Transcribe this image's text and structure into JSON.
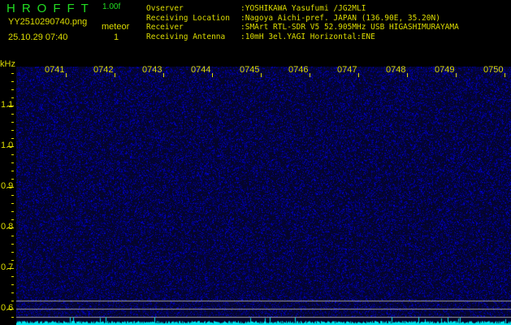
{
  "header": {
    "logo": "HROFFT",
    "version": "1.00f",
    "filename": "YY2510290740.png",
    "datetime": "25.10.29 07:40",
    "meteor_label": "meteor",
    "meteor_count": "1"
  },
  "info": [
    {
      "key": "Ovserver",
      "value": ":YOSHIKAWA Yasufumi /JG2MLI"
    },
    {
      "key": "Receiving Location",
      "value": ":Nagoya Aichi-pref. JAPAN (136.90E, 35.20N)"
    },
    {
      "key": "Receiver",
      "value": ":SMArt RTL-SDR V5 52.905MHz USB HIGASHIMURAYAMA"
    },
    {
      "key": "Receiving Antenna",
      "value": ":10mH 3el.YAGI Horizontal:ENE"
    }
  ],
  "axis": {
    "y_unit": "kHz",
    "y_ticks": [
      "1.1",
      "1.0",
      "0.9",
      "0.8",
      "0.7",
      "0.6"
    ],
    "x_ticks": [
      "0741",
      "0742",
      "0743",
      "0744",
      "0745",
      "0746",
      "0747",
      "0748",
      "0749",
      "0750"
    ]
  },
  "colors": {
    "text": "#dddd00",
    "logo": "#22dd22",
    "spectrum": "#00e5ee",
    "noise": "#1a1acc"
  }
}
